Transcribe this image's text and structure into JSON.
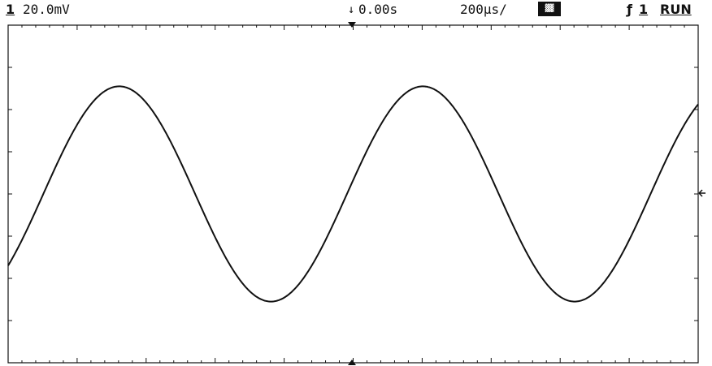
{
  "status_bar": {
    "channel": "1",
    "volts_per_div": "20.0mV",
    "trigger_delay": "0.00s",
    "time_per_div": "200µs/",
    "acquisition_mode_icon": "acquisition-mode-icon",
    "trigger_slope_icon": "rising-edge-icon",
    "trigger_source": "1",
    "run_state": "RUN"
  },
  "graticule": {
    "divisions_x": 10,
    "divisions_y": 8,
    "minor_ticks_per_div": 5
  },
  "chart_data": {
    "type": "line",
    "title": "",
    "xlabel": "",
    "ylabel": "",
    "x_units": "divisions",
    "y_units": "divisions",
    "xlim": [
      -5,
      5
    ],
    "ylim": [
      -4,
      4
    ],
    "grid": false,
    "series": [
      {
        "name": "",
        "waveform": "sine",
        "amplitude_div": 2.55,
        "period_div": 4.4,
        "peak_at_div": -3.39,
        "color": "#111111"
      }
    ]
  }
}
